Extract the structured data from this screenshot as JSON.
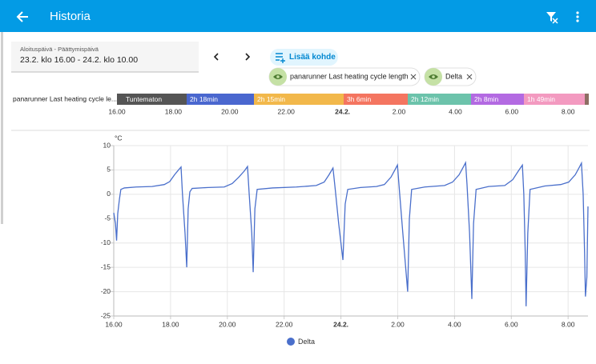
{
  "header": {
    "title": "Historia"
  },
  "date_picker": {
    "label": "Aloituspäivä - Päättymispäivä",
    "value": "23.2. klo 16.00 - 24.2. klo 10.00"
  },
  "add_button": "Lisää kohde",
  "chips": [
    "panarunner Last heating cycle length",
    "Delta"
  ],
  "timeline": {
    "label": "panarunner Last heating cycle le...",
    "segments": [
      {
        "label": "Tuntematon",
        "color": "#555555"
      },
      {
        "label": "2h 18min",
        "color": "#4a67cf"
      },
      {
        "label": "2h 15min",
        "color": "#f2b84b"
      },
      {
        "label": "3h 6min",
        "color": "#f47560"
      },
      {
        "label": "2h 12min",
        "color": "#6cc3ab"
      },
      {
        "label": "2h 8min",
        "color": "#b36ae2"
      },
      {
        "label": "1h 49min",
        "color": "#f39ac0"
      },
      {
        "label": null,
        "color": "#8d6e63"
      }
    ],
    "ticks": [
      "16.00",
      "18.00",
      "20.00",
      "22.00",
      "24.2.",
      "2.00",
      "4.00",
      "6.00",
      "8.00"
    ]
  },
  "chart_data": {
    "type": "line",
    "unit": "°C",
    "x": [
      16.0,
      16.06,
      16.1,
      16.14,
      16.2,
      16.25,
      16.37,
      16.79,
      17.35,
      17.78,
      17.97,
      18.14,
      18.28,
      18.37,
      18.42,
      18.51,
      18.57,
      18.62,
      18.68,
      18.76,
      19.33,
      19.89,
      20.17,
      20.4,
      20.6,
      20.71,
      20.77,
      20.86,
      20.91,
      20.97,
      21.05,
      21.59,
      22.43,
      23.13,
      23.41,
      23.58,
      23.72,
      23.8,
      23.92,
      24.07,
      24.15,
      24.24,
      24.69,
      25.25,
      25.53,
      25.76,
      25.9,
      25.99,
      26.07,
      26.18,
      26.35,
      26.41,
      26.49,
      26.95,
      27.65,
      27.93,
      28.16,
      28.3,
      28.39,
      28.44,
      28.53,
      28.61,
      28.67,
      28.76,
      29.2,
      29.77,
      30.05,
      30.25,
      30.39,
      30.44,
      30.49,
      30.52,
      30.58,
      30.66,
      31.18,
      31.74,
      32.02,
      32.25,
      32.39,
      32.47,
      32.53,
      32.58,
      32.61,
      32.66,
      32.7
    ],
    "series": [
      {
        "name": "Delta",
        "color": "#4a6fcb",
        "values": [
          -3.8,
          -6,
          -9.5,
          -4,
          -1,
          1,
          1.3,
          1.5,
          1.6,
          2,
          2.6,
          4,
          5,
          5.6,
          0,
          -8,
          -15,
          -3,
          0.5,
          1.2,
          1.4,
          1.5,
          2.2,
          3.5,
          4.8,
          5.7,
          0,
          -8,
          -16,
          -3,
          1,
          1.3,
          1.5,
          1.8,
          2.5,
          4,
          5.4,
          1,
          -6,
          -13.5,
          -2,
          1,
          1.4,
          1.6,
          2,
          3.5,
          5,
          6,
          0,
          -8,
          -20,
          -5,
          1,
          1.5,
          1.8,
          2.5,
          4,
          5.5,
          6.5,
          2,
          -8,
          -21.5,
          -6,
          1,
          1.6,
          1.8,
          3,
          4.8,
          6,
          0,
          -12,
          -23,
          -8,
          1,
          1.7,
          2,
          2.5,
          4,
          5.5,
          6.4,
          0,
          -12,
          -21,
          -17,
          -2.5
        ]
      }
    ],
    "xlim": [
      16,
      32.7
    ],
    "xticks": [
      {
        "value": 16,
        "label": "16.00"
      },
      {
        "value": 18,
        "label": "18.00"
      },
      {
        "value": 20,
        "label": "20.00"
      },
      {
        "value": 22,
        "label": "22.00"
      },
      {
        "value": 24,
        "label": "24.2."
      },
      {
        "value": 26,
        "label": "2.00"
      },
      {
        "value": 28,
        "label": "4.00"
      },
      {
        "value": 30,
        "label": "6.00"
      },
      {
        "value": 32,
        "label": "8.00"
      }
    ],
    "ylim": [
      -25,
      10
    ],
    "yticks": [
      10,
      5,
      0,
      -5,
      -10,
      -15,
      -20,
      -25
    ],
    "grid": true
  }
}
